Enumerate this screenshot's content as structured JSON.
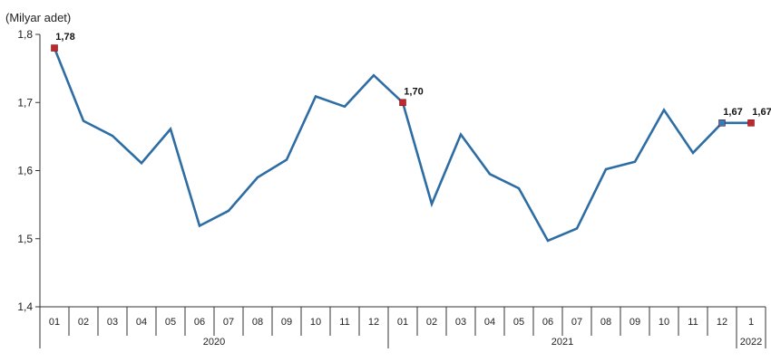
{
  "chart_data": {
    "type": "line",
    "ylabel": "(Milyar adet)",
    "ylim": [
      1.4,
      1.8
    ],
    "yticks": [
      "1,4",
      "1,5",
      "1,6",
      "1,7",
      "1,8"
    ],
    "categories": [
      "01",
      "02",
      "03",
      "04",
      "05",
      "06",
      "07",
      "08",
      "09",
      "10",
      "11",
      "12",
      "01",
      "02",
      "03",
      "04",
      "05",
      "06",
      "07",
      "08",
      "09",
      "10",
      "11",
      "12",
      "1"
    ],
    "years": [
      {
        "label": "2020",
        "start": 0,
        "end": 11
      },
      {
        "label": "2021",
        "start": 12,
        "end": 23
      },
      {
        "label": "2022",
        "start": 24,
        "end": 24
      }
    ],
    "series": [
      {
        "values": [
          1.78,
          1.673,
          1.651,
          1.611,
          1.661,
          1.519,
          1.541,
          1.59,
          1.616,
          1.709,
          1.694,
          1.74,
          1.7,
          1.551,
          1.653,
          1.595,
          1.574,
          1.497,
          1.515,
          1.602,
          1.613,
          1.689,
          1.626,
          1.67,
          1.67
        ],
        "color": "#2e6da4"
      }
    ],
    "annotations": [
      {
        "index": 0,
        "text": "1,78",
        "marker_color": "#c0282d"
      },
      {
        "index": 12,
        "text": "1,70",
        "marker_color": "#c0282d"
      },
      {
        "index": 23,
        "text": "1,67",
        "marker_color": "#2e7fc0"
      },
      {
        "index": 24,
        "text": "1,67",
        "marker_color": "#c0282d"
      }
    ],
    "grid": false,
    "legend": "none"
  }
}
